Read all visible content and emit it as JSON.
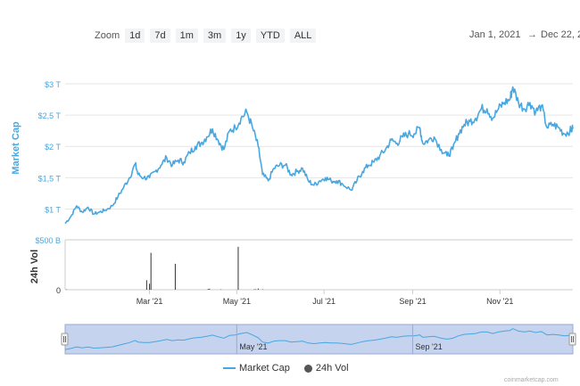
{
  "toolbar": {
    "zoom_label": "Zoom",
    "buttons": [
      "1d",
      "7d",
      "1m",
      "3m",
      "1y",
      "YTD",
      "ALL"
    ],
    "range_from": "Jan 1, 2021",
    "range_arrow": "→",
    "range_to": "Dec 22, 2"
  },
  "legend": {
    "market_cap": "Market Cap",
    "volume": "24h Vol"
  },
  "credit": "coinmarketcap.com",
  "colors": {
    "line": "#48a7e0",
    "volume": "#333333",
    "navigator_fill": "#c5d3ee",
    "grid": "#e6e6e6"
  },
  "chart_data": {
    "type": "line",
    "panels": [
      {
        "name": "market-cap",
        "ylabel": "Market Cap",
        "yticks": [
          1,
          1.5,
          2,
          2.5,
          3
        ],
        "ytick_labels": [
          "$1 T",
          "$1,5 T",
          "$2 T",
          "$2,5 T",
          "$3 T"
        ],
        "ylim": [
          0.75,
          3.0
        ],
        "series": [
          {
            "name": "Market Cap",
            "x": [
              "2021-01-01",
              "2021-01-05",
              "2021-01-09",
              "2021-01-13",
              "2021-01-17",
              "2021-01-21",
              "2021-01-25",
              "2021-01-29",
              "2021-02-03",
              "2021-02-07",
              "2021-02-11",
              "2021-02-15",
              "2021-02-19",
              "2021-02-21",
              "2021-02-25",
              "2021-03-01",
              "2021-03-05",
              "2021-03-09",
              "2021-03-13",
              "2021-03-17",
              "2021-03-21",
              "2021-03-25",
              "2021-03-29",
              "2021-04-02",
              "2021-04-06",
              "2021-04-10",
              "2021-04-14",
              "2021-04-18",
              "2021-04-22",
              "2021-04-26",
              "2021-04-30",
              "2021-05-04",
              "2021-05-08",
              "2021-05-12",
              "2021-05-16",
              "2021-05-19",
              "2021-05-23",
              "2021-05-27",
              "2021-05-31",
              "2021-06-04",
              "2021-06-08",
              "2021-06-12",
              "2021-06-16",
              "2021-06-20",
              "2021-06-24",
              "2021-06-28",
              "2021-07-02",
              "2021-07-06",
              "2021-07-10",
              "2021-07-14",
              "2021-07-20",
              "2021-07-24",
              "2021-07-28",
              "2021-08-01",
              "2021-08-05",
              "2021-08-09",
              "2021-08-13",
              "2021-08-17",
              "2021-08-21",
              "2021-08-25",
              "2021-08-29",
              "2021-09-02",
              "2021-09-06",
              "2021-09-08",
              "2021-09-12",
              "2021-09-16",
              "2021-09-21",
              "2021-09-25",
              "2021-09-29",
              "2021-10-03",
              "2021-10-07",
              "2021-10-11",
              "2021-10-15",
              "2021-10-19",
              "2021-10-23",
              "2021-10-27",
              "2021-10-31",
              "2021-11-04",
              "2021-11-08",
              "2021-11-10",
              "2021-11-14",
              "2021-11-18",
              "2021-11-22",
              "2021-11-26",
              "2021-11-30",
              "2021-12-04",
              "2021-12-08",
              "2021-12-12",
              "2021-12-16",
              "2021-12-20",
              "2021-12-22"
            ],
            "y": [
              0.77,
              0.88,
              1.05,
              0.95,
              1.03,
              0.92,
              0.95,
              0.98,
              1.05,
              1.2,
              1.35,
              1.5,
              1.72,
              1.55,
              1.5,
              1.5,
              1.6,
              1.7,
              1.82,
              1.7,
              1.78,
              1.75,
              1.9,
              2.0,
              2.05,
              2.15,
              2.28,
              2.1,
              1.95,
              2.25,
              2.3,
              2.45,
              2.55,
              2.3,
              2.0,
              1.55,
              1.45,
              1.65,
              1.7,
              1.7,
              1.55,
              1.6,
              1.65,
              1.45,
              1.38,
              1.45,
              1.5,
              1.45,
              1.45,
              1.4,
              1.3,
              1.45,
              1.6,
              1.7,
              1.75,
              1.85,
              1.95,
              2.1,
              2.05,
              2.15,
              2.2,
              2.2,
              2.3,
              2.05,
              2.1,
              2.15,
              1.95,
              1.85,
              1.95,
              2.2,
              2.35,
              2.4,
              2.45,
              2.6,
              2.6,
              2.45,
              2.6,
              2.7,
              2.75,
              2.95,
              2.7,
              2.6,
              2.7,
              2.55,
              2.65,
              2.3,
              2.35,
              2.3,
              2.2,
              2.25,
              2.28
            ]
          }
        ]
      },
      {
        "name": "volume",
        "ylabel": "24h Vol",
        "yticks": [
          0,
          500
        ],
        "ytick_labels": [
          "0",
          "$500 B"
        ],
        "ylim": [
          0,
          500
        ],
        "series": [
          {
            "name": "24h Vol",
            "x": [
              "2021-01-02",
              "2021-02-27",
              "2021-03-01",
              "2021-03-02",
              "2021-03-19",
              "2021-04-11",
              "2021-04-12",
              "2021-04-20",
              "2021-05-02",
              "2021-05-13",
              "2021-05-14",
              "2021-05-16",
              "2021-05-19"
            ],
            "y": [
              3,
              95,
              60,
              370,
              260,
              8,
              10,
              4,
              430,
              3,
              6,
              12,
              4
            ]
          }
        ]
      }
    ],
    "x_ticks": [
      "Mar '21",
      "May '21",
      "Jul '21",
      "Sep '21",
      "Nov '21"
    ],
    "x_tick_dates": [
      "2021-03-01",
      "2021-05-01",
      "2021-07-01",
      "2021-09-01",
      "2021-11-01"
    ],
    "xlim": [
      "2021-01-01",
      "2021-12-22"
    ],
    "navigator": {
      "x_ticks": [
        "May '21",
        "Sep '21"
      ],
      "x_tick_dates": [
        "2021-05-01",
        "2021-09-01"
      ]
    },
    "grid": true,
    "legend_position": "bottom-center"
  }
}
